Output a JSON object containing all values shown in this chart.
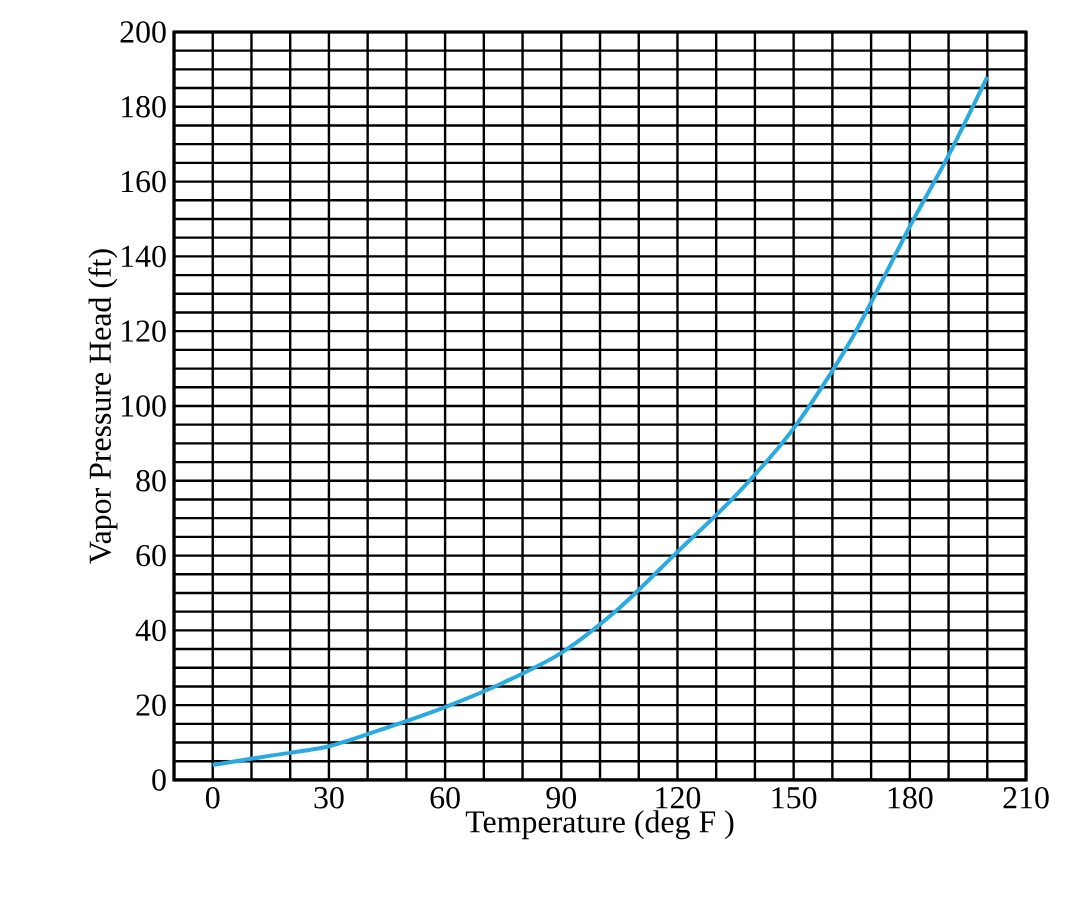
{
  "chart_data": {
    "type": "line",
    "xlabel": "Temperature (deg F )",
    "ylabel": "Vapor Pressure Head (ft)",
    "xlim": [
      -10,
      210
    ],
    "ylim": [
      0,
      200
    ],
    "xticks": [
      {
        "value": -10,
        "label": null
      },
      0,
      {
        "value": 10,
        "label": null
      },
      {
        "value": 20,
        "label": null
      },
      30,
      {
        "value": 40,
        "label": null
      },
      {
        "value": 50,
        "label": null
      },
      60,
      {
        "value": 70,
        "label": null
      },
      {
        "value": 80,
        "label": null
      },
      90,
      {
        "value": 100,
        "label": null
      },
      {
        "value": 110,
        "label": null
      },
      120,
      {
        "value": 130,
        "label": null
      },
      {
        "value": 140,
        "label": null
      },
      150,
      {
        "value": 160,
        "label": null
      },
      {
        "value": 170,
        "label": null
      },
      180,
      {
        "value": 190,
        "label": null
      },
      {
        "value": 200,
        "label": null
      },
      210
    ],
    "yticks": [
      0,
      {
        "value": 5,
        "label": null
      },
      {
        "value": 10,
        "label": null
      },
      {
        "value": 15,
        "label": null
      },
      20,
      {
        "value": 25,
        "label": null
      },
      {
        "value": 30,
        "label": null
      },
      {
        "value": 35,
        "label": null
      },
      40,
      {
        "value": 45,
        "label": null
      },
      {
        "value": 50,
        "label": null
      },
      {
        "value": 55,
        "label": null
      },
      60,
      {
        "value": 65,
        "label": null
      },
      {
        "value": 70,
        "label": null
      },
      {
        "value": 75,
        "label": null
      },
      80,
      {
        "value": 85,
        "label": null
      },
      {
        "value": 90,
        "label": null
      },
      {
        "value": 95,
        "label": null
      },
      100,
      {
        "value": 105,
        "label": null
      },
      {
        "value": 110,
        "label": null
      },
      {
        "value": 115,
        "label": null
      },
      120,
      {
        "value": 125,
        "label": null
      },
      {
        "value": 130,
        "label": null
      },
      {
        "value": 135,
        "label": null
      },
      140,
      {
        "value": 145,
        "label": null
      },
      {
        "value": 150,
        "label": null
      },
      {
        "value": 155,
        "label": null
      },
      160,
      {
        "value": 165,
        "label": null
      },
      {
        "value": 170,
        "label": null
      },
      {
        "value": 175,
        "label": null
      },
      180,
      {
        "value": 185,
        "label": null
      },
      {
        "value": 190,
        "label": null
      },
      {
        "value": 195,
        "label": null
      },
      200
    ],
    "grid": true,
    "x": [
      0,
      15,
      30,
      45,
      60,
      75,
      90,
      105,
      120,
      135,
      150,
      165,
      180,
      190,
      200
    ],
    "series": [
      {
        "color": "#29abe2",
        "values": [
          4,
          6.5,
          9,
          14,
          19.5,
          26,
          34,
          46,
          61,
          76,
          94,
          118,
          148,
          167,
          188
        ]
      }
    ]
  }
}
